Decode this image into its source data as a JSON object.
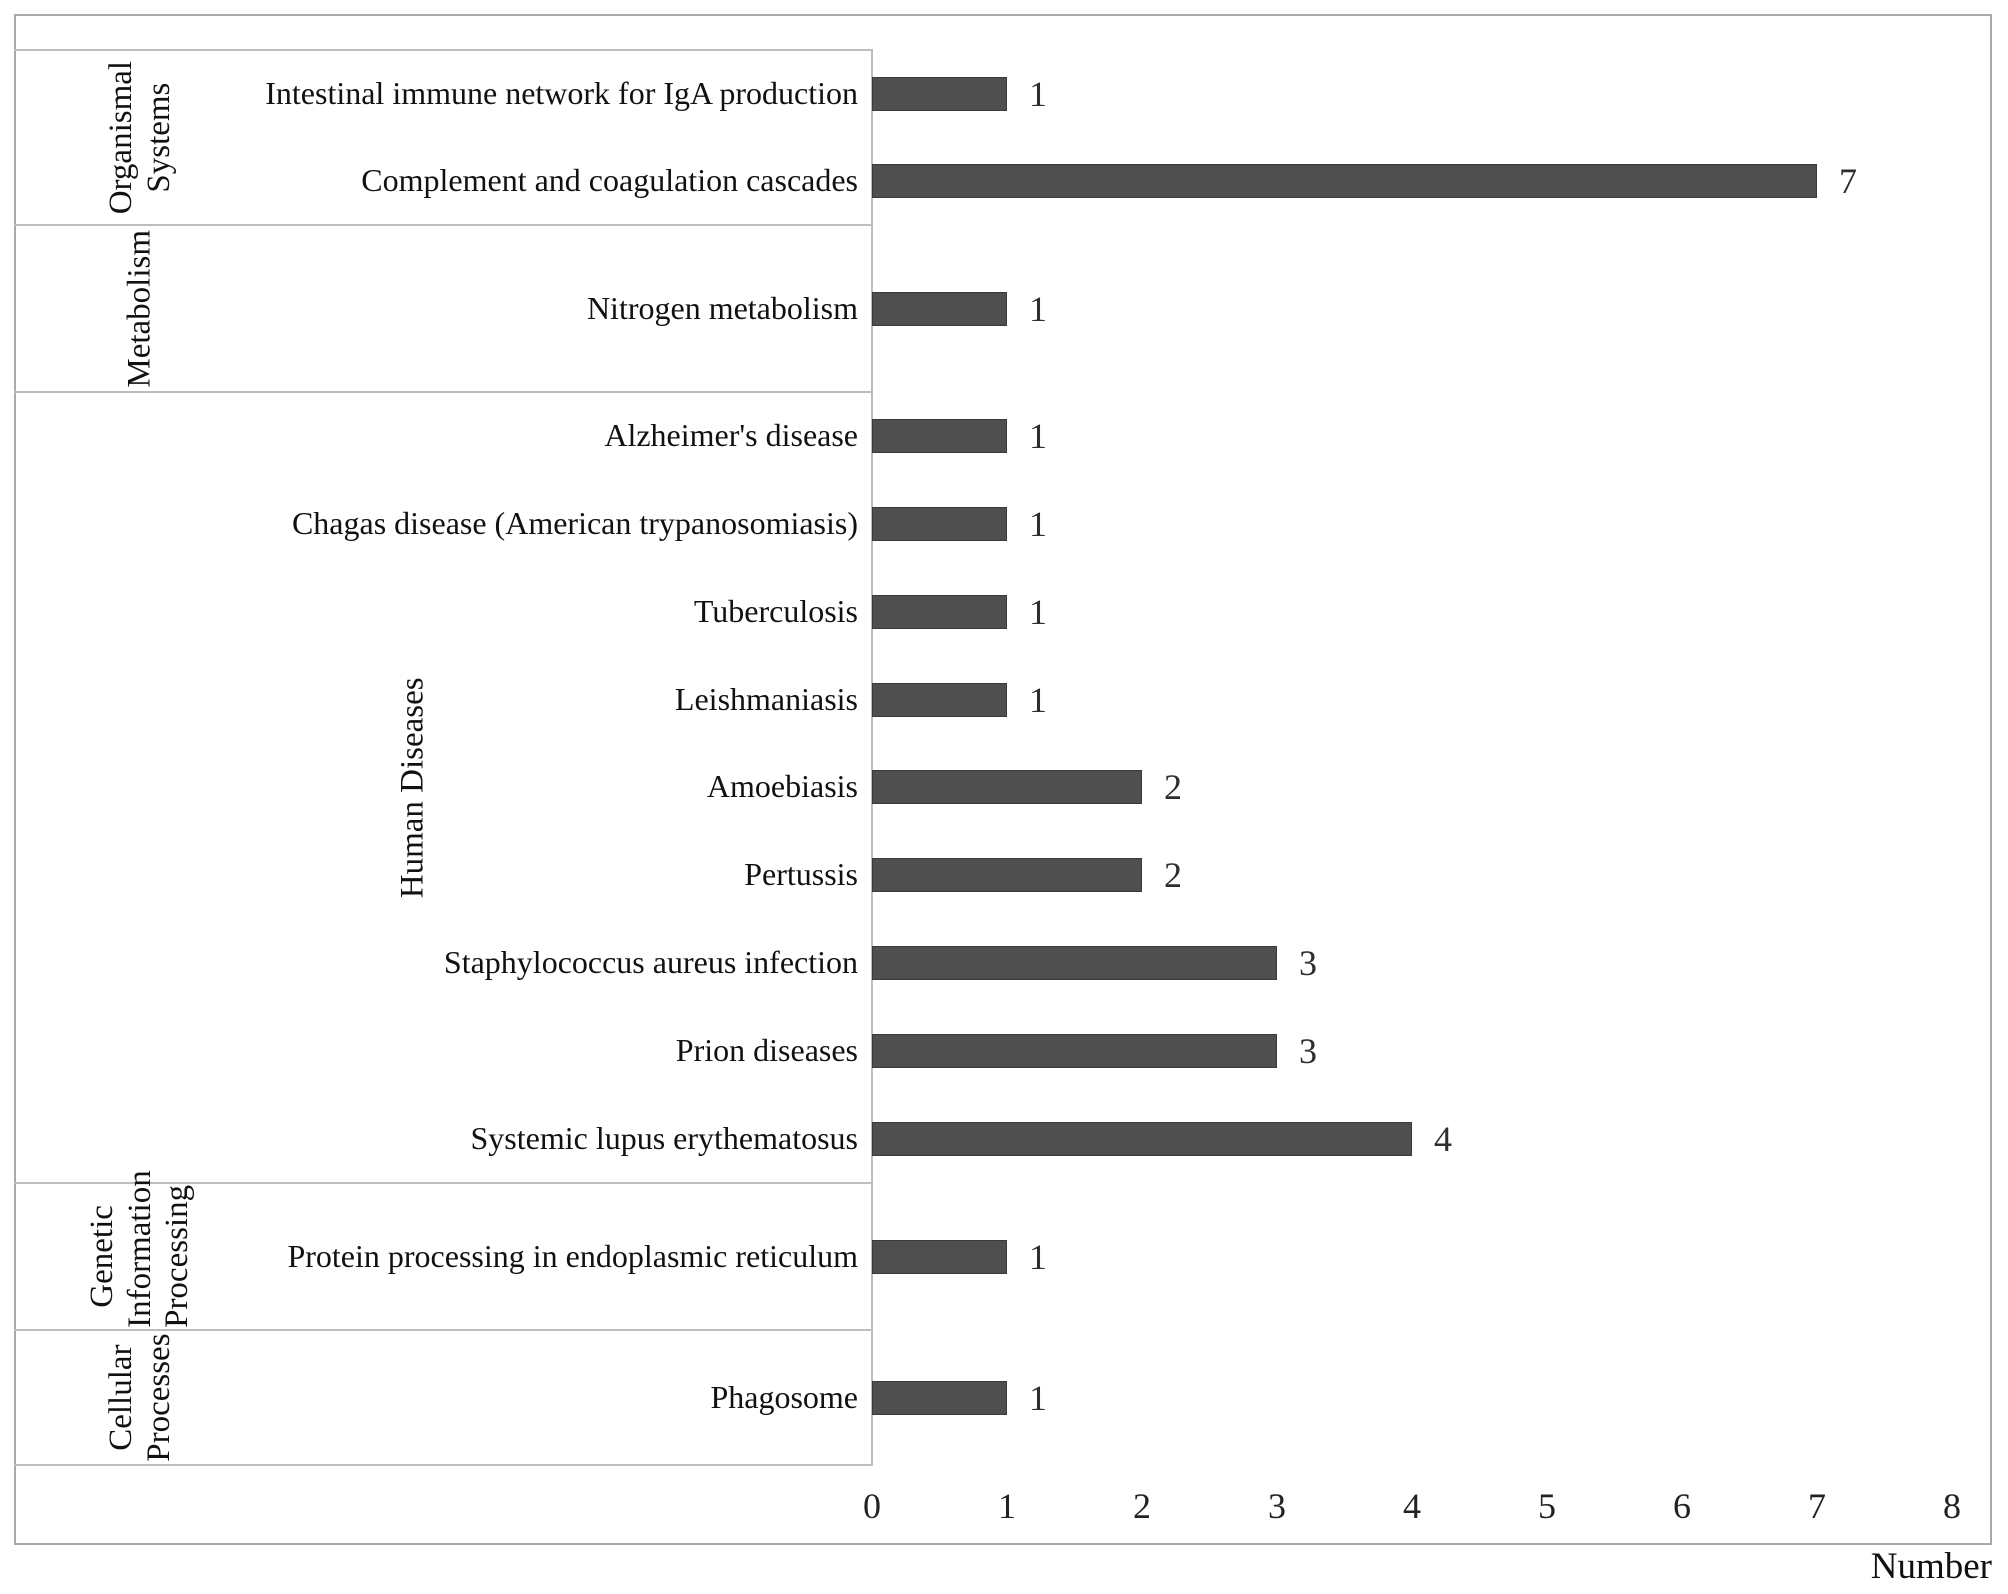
{
  "figure": {
    "axis_label": "Number",
    "tick_labels": [
      "0",
      "1",
      "2",
      "3",
      "4",
      "5",
      "6",
      "7",
      "8"
    ]
  },
  "chart_data": {
    "type": "bar",
    "orientation": "horizontal",
    "title": "",
    "xlabel": "Number",
    "ylabel": "",
    "xlim": [
      0,
      8
    ],
    "grid": false,
    "bar_color": "#4f4f4f",
    "line_color": "#bdbdbd",
    "groups": [
      {
        "category": "Organismal Systems",
        "items": [
          {
            "label": "Intestinal immune network for IgA production",
            "value": 1
          },
          {
            "label": "Complement and coagulation cascades",
            "value": 7
          }
        ]
      },
      {
        "category": "Metabolism",
        "items": [
          {
            "label": "Nitrogen metabolism",
            "value": 1
          }
        ]
      },
      {
        "category": "Human Diseases",
        "items": [
          {
            "label": "Alzheimer's disease",
            "value": 1
          },
          {
            "label": "Chagas disease (American trypanosomiasis)",
            "value": 1
          },
          {
            "label": "Tuberculosis",
            "value": 1
          },
          {
            "label": "Leishmaniasis",
            "value": 1
          },
          {
            "label": "Amoebiasis",
            "value": 2
          },
          {
            "label": "Pertussis",
            "value": 2
          },
          {
            "label": "Staphylococcus aureus infection",
            "value": 3
          },
          {
            "label": "Prion diseases",
            "value": 3
          },
          {
            "label": "Systemic lupus erythematosus",
            "value": 4
          }
        ]
      },
      {
        "category": "Genetic Information Processing",
        "items": [
          {
            "label": "Protein processing in endoplasmic reticulum",
            "value": 1
          }
        ]
      },
      {
        "category": "Cellular Processes",
        "items": [
          {
            "label": "Phagosome",
            "value": 1
          }
        ]
      }
    ]
  }
}
